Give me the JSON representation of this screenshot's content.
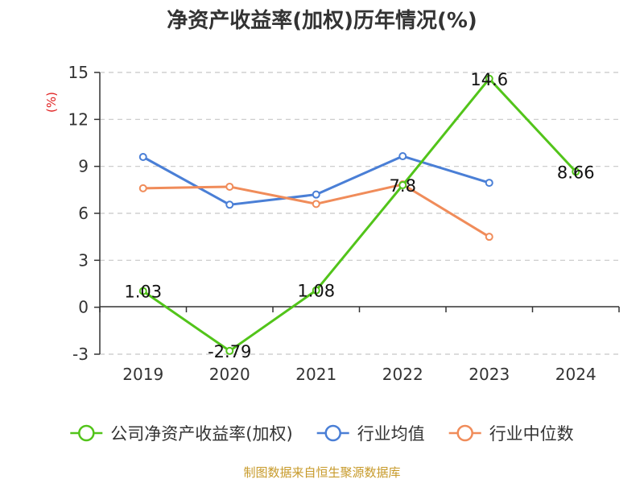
{
  "chart_data": {
    "type": "line",
    "title": "净资产收益率(加权)历年情况(%)",
    "ylabel": "(%)",
    "xlabel": "",
    "categories": [
      "2019",
      "2020",
      "2021",
      "2022",
      "2023",
      "2024"
    ],
    "yticks": [
      "15",
      "12",
      "9",
      "6",
      "3",
      "0",
      "-3"
    ],
    "ylim": [
      -3,
      15
    ],
    "grid": true,
    "legend_position": "bottom",
    "series": [
      {
        "name": "公司净资产收益率(加权)",
        "color": "#52c41a",
        "values": [
          1.03,
          -2.79,
          1.08,
          7.8,
          14.6,
          8.66
        ],
        "labels": [
          "1.03",
          "-2.79",
          "1.08",
          "7.8",
          "14.6",
          "8.66"
        ]
      },
      {
        "name": "行业均值",
        "color": "#4a7fd6",
        "values": [
          9.6,
          6.55,
          7.2,
          9.65,
          7.95,
          null
        ]
      },
      {
        "name": "行业中位数",
        "color": "#f08c5a",
        "values": [
          7.6,
          7.7,
          6.6,
          7.85,
          4.5,
          null
        ]
      }
    ]
  },
  "footer": {
    "source": "制图数据来自恒生聚源数据库"
  }
}
